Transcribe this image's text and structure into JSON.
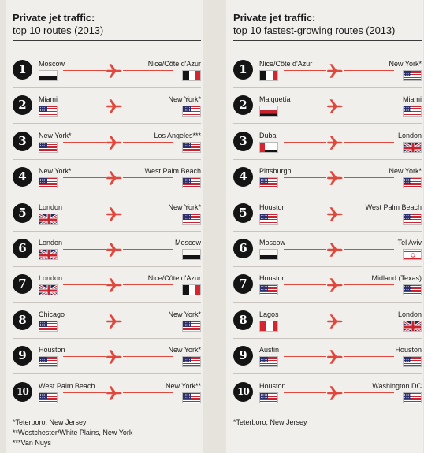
{
  "colors": {
    "accent": "#e0473d",
    "panel": "#f1efeb",
    "background": "#e6e3dd",
    "circle": "#141414"
  },
  "icons": {
    "route": "airplane-icon"
  },
  "left": {
    "title": "Private jet traffic:",
    "subtitle": "top 10 routes (2013)",
    "rows": [
      {
        "rank": "1",
        "from": "Moscow",
        "from_flag": "russia",
        "to": "Nice/Côte d'Azur",
        "to_flag": "france"
      },
      {
        "rank": "2",
        "from": "Miami",
        "from_flag": "usa",
        "to": "New York*",
        "to_flag": "usa"
      },
      {
        "rank": "3",
        "from": "New York*",
        "from_flag": "usa",
        "to": "Los Angeles***",
        "to_flag": "usa"
      },
      {
        "rank": "4",
        "from": "New York*",
        "from_flag": "usa",
        "to": "West Palm Beach",
        "to_flag": "usa"
      },
      {
        "rank": "5",
        "from": "London",
        "from_flag": "uk",
        "to": "New York*",
        "to_flag": "usa"
      },
      {
        "rank": "6",
        "from": "London",
        "from_flag": "uk",
        "to": "Moscow",
        "to_flag": "russia"
      },
      {
        "rank": "7",
        "from": "London",
        "from_flag": "uk",
        "to": "Nice/Côte d'Azur",
        "to_flag": "france"
      },
      {
        "rank": "8",
        "from": "Chicago",
        "from_flag": "usa",
        "to": "New York*",
        "to_flag": "usa"
      },
      {
        "rank": "9",
        "from": "Houston",
        "from_flag": "usa",
        "to": "New York*",
        "to_flag": "usa"
      },
      {
        "rank": "10",
        "from": "West Palm Beach",
        "from_flag": "usa",
        "to": "New York**",
        "to_flag": "usa"
      }
    ],
    "footnotes": [
      "*Teterboro, New Jersey",
      "**Westchester/White Plains, New York",
      "***Van Nuys"
    ]
  },
  "right": {
    "title": "Private jet traffic:",
    "subtitle": "top 10 fastest-growing routes (2013)",
    "rows": [
      {
        "rank": "1",
        "from": "Nice/Côte d'Azur",
        "from_flag": "france",
        "to": "New York*",
        "to_flag": "usa"
      },
      {
        "rank": "2",
        "from": "Maiquetía",
        "from_flag": "venezuela",
        "to": "Miami",
        "to_flag": "usa"
      },
      {
        "rank": "3",
        "from": "Dubai",
        "from_flag": "uae",
        "to": "London",
        "to_flag": "uk"
      },
      {
        "rank": "4",
        "from": "Pittsburgh",
        "from_flag": "usa",
        "to": "New York*",
        "to_flag": "usa"
      },
      {
        "rank": "5",
        "from": "Houston",
        "from_flag": "usa",
        "to": "West Palm Beach",
        "to_flag": "usa"
      },
      {
        "rank": "6",
        "from": "Moscow",
        "from_flag": "russia",
        "to": "Tel Aviv",
        "to_flag": "israel"
      },
      {
        "rank": "7",
        "from": "Houston",
        "from_flag": "usa",
        "to": "Midland (Texas)",
        "to_flag": "usa"
      },
      {
        "rank": "8",
        "from": "Lagos",
        "from_flag": "nigeria",
        "to": "London",
        "to_flag": "uk"
      },
      {
        "rank": "9",
        "from": "Austin",
        "from_flag": "usa",
        "to": "Houston",
        "to_flag": "usa"
      },
      {
        "rank": "10",
        "from": "Houston",
        "from_flag": "usa",
        "to": "Washington DC",
        "to_flag": "usa"
      }
    ],
    "footnotes": [
      "*Teterboro, New Jersey"
    ]
  }
}
